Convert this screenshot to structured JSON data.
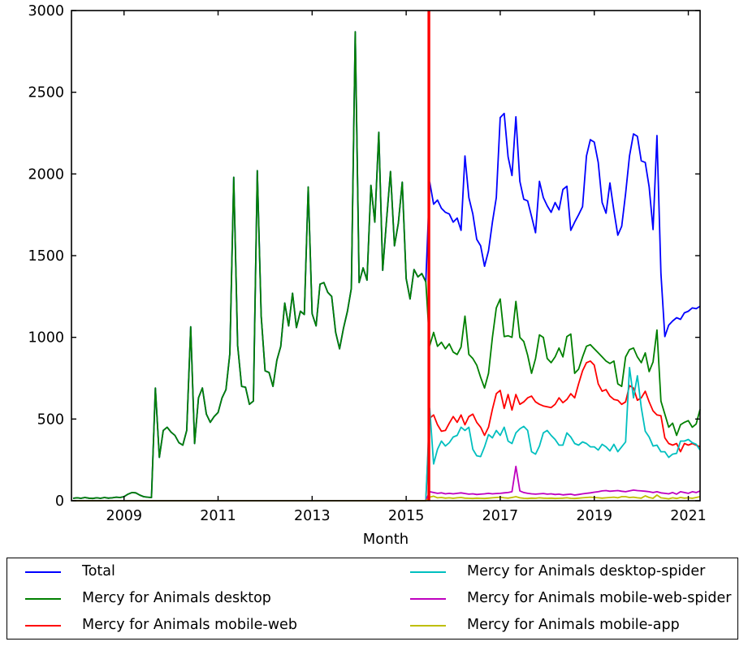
{
  "figure": {
    "background": "#ffffff"
  },
  "chart_data": {
    "type": "line",
    "title": "",
    "xlabel": "Month",
    "ylabel": "",
    "ylim": [
      0,
      3000
    ],
    "yticks": [
      0,
      500,
      1000,
      1500,
      2000,
      2500,
      3000
    ],
    "xtick_years": [
      2009,
      2011,
      2013,
      2015,
      2017,
      2019,
      2021
    ],
    "x_unit": "month",
    "x_start": "2007-12",
    "x_end": "2021-04",
    "grid": false,
    "legend_position": "below, 2 columns, boxed",
    "vline": {
      "x_month": "2015-07",
      "color": "#ff0000",
      "note": "red vertical line at start of API data (Jul 2015)"
    },
    "values_note": "monthly pageview estimates read from plot, Dec 2007 through Apr 2021; non-desktop series are 0 before Jul 2015",
    "series": [
      {
        "label": "Total",
        "color": "#0000ff",
        "values": [
          15,
          18,
          15,
          20,
          16,
          14,
          18,
          15,
          20,
          16,
          18,
          22,
          20,
          25,
          40,
          50,
          48,
          35,
          25,
          22,
          20,
          690,
          265,
          430,
          450,
          420,
          400,
          355,
          340,
          430,
          1065,
          350,
          630,
          690,
          530,
          480,
          515,
          540,
          630,
          680,
          900,
          1980,
          950,
          700,
          695,
          590,
          610,
          2020,
          1130,
          795,
          785,
          700,
          860,
          945,
          1210,
          1070,
          1270,
          1060,
          1160,
          1140,
          1920,
          1145,
          1070,
          1325,
          1335,
          1275,
          1250,
          1030,
          930,
          1055,
          1160,
          1300,
          2870,
          1335,
          1425,
          1350,
          1930,
          1705,
          2255,
          1410,
          1720,
          2015,
          1560,
          1700,
          1950,
          1360,
          1235,
          1415,
          1370,
          1390,
          1340,
          1950,
          1815,
          1840,
          1790,
          1765,
          1755,
          1705,
          1730,
          1655,
          2110,
          1855,
          1755,
          1600,
          1560,
          1435,
          1530,
          1705,
          1855,
          2345,
          2370,
          2105,
          1990,
          2350,
          1955,
          1845,
          1835,
          1740,
          1640,
          1955,
          1855,
          1805,
          1765,
          1825,
          1780,
          1905,
          1925,
          1655,
          1705,
          1750,
          1800,
          2110,
          2210,
          2195,
          2070,
          1825,
          1760,
          1945,
          1775,
          1625,
          1680,
          1880,
          2110,
          2245,
          2230,
          2080,
          2070,
          1920,
          1660,
          2235,
          1390,
          1005,
          1075,
          1100,
          1120,
          1110,
          1150,
          1160,
          1180,
          1175,
          1190
        ]
      },
      {
        "label": "Mercy for Animals desktop",
        "color": "#008000",
        "values": [
          15,
          18,
          15,
          20,
          16,
          14,
          18,
          15,
          20,
          16,
          18,
          22,
          20,
          25,
          40,
          50,
          48,
          35,
          25,
          22,
          20,
          690,
          265,
          430,
          450,
          420,
          400,
          355,
          340,
          430,
          1065,
          350,
          630,
          690,
          530,
          480,
          515,
          540,
          630,
          680,
          900,
          1980,
          950,
          700,
          695,
          590,
          610,
          2020,
          1130,
          795,
          785,
          700,
          860,
          945,
          1210,
          1070,
          1270,
          1060,
          1160,
          1140,
          1920,
          1145,
          1070,
          1325,
          1335,
          1275,
          1250,
          1030,
          930,
          1055,
          1160,
          1300,
          2870,
          1335,
          1425,
          1350,
          1930,
          1705,
          2255,
          1410,
          1720,
          2015,
          1560,
          1700,
          1950,
          1360,
          1235,
          1415,
          1370,
          1390,
          1340,
          950,
          1030,
          945,
          970,
          930,
          960,
          910,
          895,
          940,
          1130,
          895,
          870,
          830,
          755,
          690,
          780,
          1000,
          1180,
          1235,
          1005,
          1010,
          1000,
          1220,
          1000,
          975,
          890,
          780,
          870,
          1015,
          1000,
          870,
          845,
          880,
          935,
          880,
          1005,
          1020,
          780,
          805,
          880,
          945,
          955,
          930,
          905,
          880,
          855,
          840,
          855,
          715,
          700,
          880,
          925,
          935,
          880,
          845,
          905,
          790,
          850,
          1045,
          610,
          530,
          450,
          475,
          400,
          465,
          480,
          490,
          450,
          470,
          560
        ]
      },
      {
        "label": "Mercy for Animals mobile-web",
        "color": "#ff0000",
        "values": [
          0,
          0,
          0,
          0,
          0,
          0,
          0,
          0,
          0,
          0,
          0,
          0,
          0,
          0,
          0,
          0,
          0,
          0,
          0,
          0,
          0,
          0,
          0,
          0,
          0,
          0,
          0,
          0,
          0,
          0,
          0,
          0,
          0,
          0,
          0,
          0,
          0,
          0,
          0,
          0,
          0,
          0,
          0,
          0,
          0,
          0,
          0,
          0,
          0,
          0,
          0,
          0,
          0,
          0,
          0,
          0,
          0,
          0,
          0,
          0,
          0,
          0,
          0,
          0,
          0,
          0,
          0,
          0,
          0,
          0,
          0,
          0,
          0,
          0,
          0,
          0,
          0,
          0,
          0,
          0,
          0,
          0,
          0,
          0,
          0,
          0,
          0,
          0,
          0,
          0,
          0,
          505,
          525,
          465,
          425,
          430,
          475,
          515,
          480,
          525,
          465,
          515,
          530,
          480,
          450,
          400,
          450,
          560,
          655,
          675,
          565,
          650,
          555,
          650,
          590,
          605,
          630,
          640,
          605,
          590,
          580,
          575,
          570,
          590,
          630,
          600,
          620,
          655,
          630,
          715,
          795,
          845,
          855,
          830,
          715,
          670,
          680,
          640,
          620,
          615,
          590,
          605,
          705,
          690,
          615,
          630,
          670,
          605,
          550,
          525,
          520,
          385,
          350,
          340,
          350,
          300,
          350,
          340,
          350,
          340,
          330
        ]
      },
      {
        "label": "Mercy for Animals desktop-spider",
        "color": "#00bfbf",
        "values": [
          0,
          0,
          0,
          0,
          0,
          0,
          0,
          0,
          0,
          0,
          0,
          0,
          0,
          0,
          0,
          0,
          0,
          0,
          0,
          0,
          0,
          0,
          0,
          0,
          0,
          0,
          0,
          0,
          0,
          0,
          0,
          0,
          0,
          0,
          0,
          0,
          0,
          0,
          0,
          0,
          0,
          0,
          0,
          0,
          0,
          0,
          0,
          0,
          0,
          0,
          0,
          0,
          0,
          0,
          0,
          0,
          0,
          0,
          0,
          0,
          0,
          0,
          0,
          0,
          0,
          0,
          0,
          0,
          0,
          0,
          0,
          0,
          0,
          0,
          0,
          0,
          0,
          0,
          0,
          0,
          0,
          0,
          0,
          0,
          0,
          0,
          0,
          0,
          0,
          0,
          0,
          565,
          225,
          315,
          365,
          335,
          355,
          390,
          400,
          450,
          430,
          450,
          315,
          275,
          270,
          330,
          405,
          385,
          430,
          400,
          450,
          365,
          350,
          415,
          440,
          455,
          430,
          300,
          285,
          335,
          415,
          430,
          400,
          375,
          340,
          340,
          415,
          390,
          350,
          340,
          360,
          350,
          330,
          330,
          310,
          345,
          330,
          305,
          345,
          300,
          330,
          360,
          815,
          630,
          765,
          570,
          425,
          390,
          335,
          340,
          300,
          300,
          265,
          285,
          290,
          365,
          365,
          375,
          355,
          345,
          310
        ]
      },
      {
        "label": "Mercy for Animals mobile-web-spider",
        "color": "#bf00bf",
        "values": [
          0,
          0,
          0,
          0,
          0,
          0,
          0,
          0,
          0,
          0,
          0,
          0,
          0,
          0,
          0,
          0,
          0,
          0,
          0,
          0,
          0,
          0,
          0,
          0,
          0,
          0,
          0,
          0,
          0,
          0,
          0,
          0,
          0,
          0,
          0,
          0,
          0,
          0,
          0,
          0,
          0,
          0,
          0,
          0,
          0,
          0,
          0,
          0,
          0,
          0,
          0,
          0,
          0,
          0,
          0,
          0,
          0,
          0,
          0,
          0,
          0,
          0,
          0,
          0,
          0,
          0,
          0,
          0,
          0,
          0,
          0,
          0,
          0,
          0,
          0,
          0,
          0,
          0,
          0,
          0,
          0,
          0,
          0,
          0,
          0,
          0,
          0,
          0,
          0,
          0,
          0,
          55,
          50,
          45,
          48,
          42,
          45,
          42,
          45,
          48,
          44,
          40,
          42,
          38,
          40,
          42,
          45,
          42,
          44,
          45,
          48,
          50,
          55,
          210,
          60,
          50,
          45,
          42,
          40,
          42,
          44,
          40,
          42,
          38,
          40,
          36,
          38,
          40,
          35,
          38,
          42,
          45,
          48,
          52,
          55,
          60,
          62,
          58,
          60,
          62,
          58,
          55,
          60,
          65,
          62,
          60,
          58,
          55,
          50,
          55,
          48,
          45,
          42,
          50,
          40,
          55,
          50,
          45,
          55,
          50,
          60
        ]
      },
      {
        "label": "Mercy for Animals mobile-app",
        "color": "#bfbf00",
        "values": [
          0,
          0,
          0,
          0,
          0,
          0,
          0,
          0,
          0,
          0,
          0,
          0,
          0,
          0,
          0,
          0,
          0,
          0,
          0,
          0,
          0,
          0,
          0,
          0,
          0,
          0,
          0,
          0,
          0,
          0,
          0,
          0,
          0,
          0,
          0,
          0,
          0,
          0,
          0,
          0,
          0,
          0,
          0,
          0,
          0,
          0,
          0,
          0,
          0,
          0,
          0,
          0,
          0,
          0,
          0,
          0,
          0,
          0,
          0,
          0,
          0,
          0,
          0,
          0,
          0,
          0,
          0,
          0,
          0,
          0,
          0,
          0,
          0,
          0,
          0,
          0,
          0,
          0,
          0,
          0,
          0,
          0,
          0,
          0,
          0,
          0,
          0,
          0,
          0,
          0,
          0,
          22,
          28,
          18,
          20,
          16,
          18,
          15,
          18,
          20,
          16,
          15,
          14,
          16,
          15,
          14,
          16,
          18,
          20,
          22,
          18,
          16,
          20,
          25,
          18,
          15,
          14,
          16,
          15,
          18,
          16,
          15,
          16,
          14,
          15,
          16,
          18,
          15,
          14,
          16,
          18,
          20,
          22,
          20,
          18,
          16,
          18,
          20,
          22,
          18,
          25,
          25,
          20,
          22,
          18,
          16,
          30,
          20,
          15,
          35,
          18,
          15,
          12,
          18,
          14,
          20,
          16,
          18,
          15,
          20,
          25
        ]
      }
    ]
  }
}
